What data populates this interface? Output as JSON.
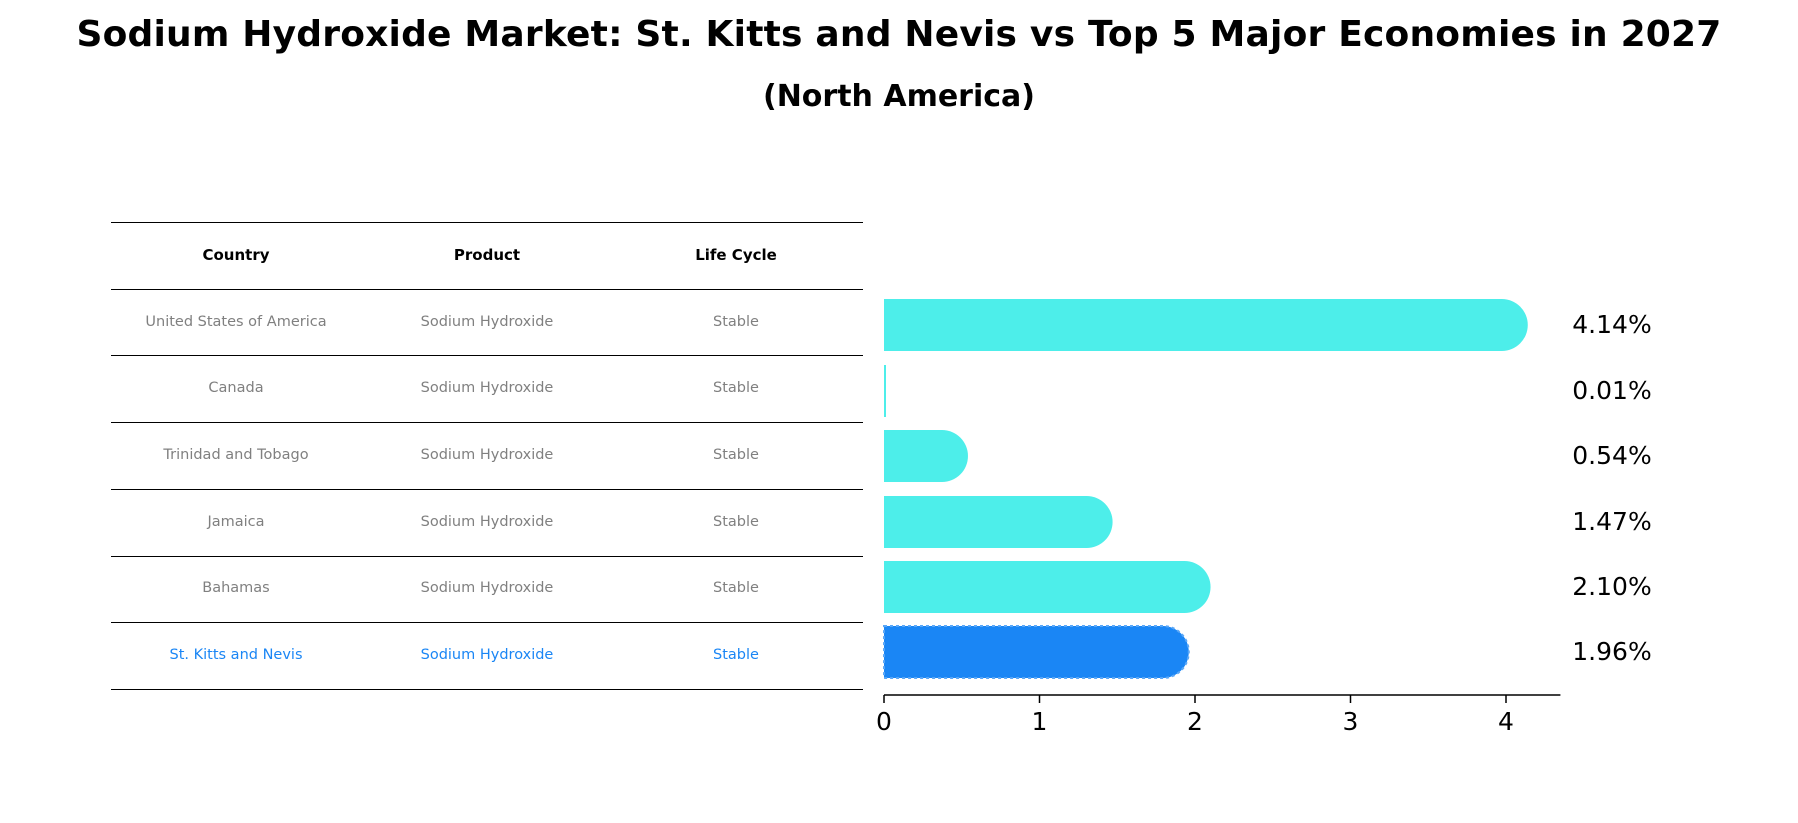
{
  "title": "Sodium Hydroxide Market: St. Kitts and Nevis vs Top 5 Major Economies in 2027",
  "subtitle": "(North America)",
  "table": {
    "headers": [
      "Country",
      "Product",
      "Life Cycle"
    ],
    "rows": [
      {
        "country": "United States of America",
        "product": "Sodium Hydroxide",
        "life_cycle": "Stable"
      },
      {
        "country": "Canada",
        "product": "Sodium Hydroxide",
        "life_cycle": "Stable"
      },
      {
        "country": "Trinidad and Tobago",
        "product": "Sodium Hydroxide",
        "life_cycle": "Stable"
      },
      {
        "country": "Jamaica",
        "product": "Sodium Hydroxide",
        "life_cycle": "Stable"
      },
      {
        "country": "Bahamas",
        "product": "Sodium Hydroxide",
        "life_cycle": "Stable"
      },
      {
        "country": "St. Kitts and Nevis",
        "product": "Sodium Hydroxide",
        "life_cycle": "Stable"
      }
    ]
  },
  "chart_data": {
    "type": "bar",
    "orientation": "horizontal",
    "categories": [
      "United States of America",
      "Canada",
      "Trinidad and Tobago",
      "Jamaica",
      "Bahamas",
      "St. Kitts and Nevis"
    ],
    "values": [
      4.14,
      0.01,
      0.54,
      1.47,
      2.1,
      1.96
    ],
    "value_labels": [
      "4.14%",
      "0.01%",
      "0.54%",
      "1.47%",
      "2.10%",
      "1.96%"
    ],
    "highlight_index": 5,
    "xlim": [
      0,
      4.35
    ],
    "xticks": [
      0,
      1,
      2,
      3,
      4
    ],
    "xtick_labels": [
      "0",
      "1",
      "2",
      "3",
      "4"
    ],
    "colors": {
      "default": "#4deeea",
      "highlight": "#1a86f5"
    }
  }
}
